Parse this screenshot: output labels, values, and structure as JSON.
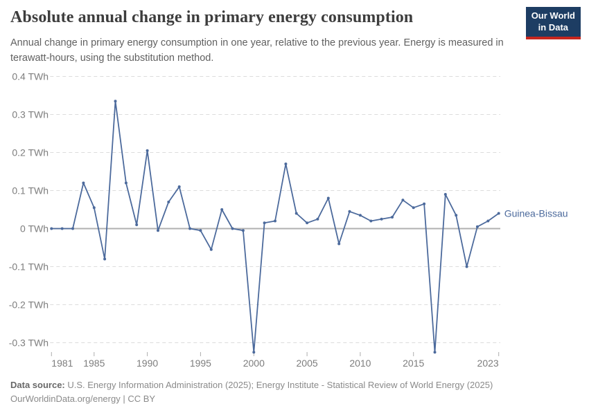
{
  "header": {
    "title": "Absolute annual change in primary energy consumption",
    "subtitle": "Annual change in primary energy consumption in one year, relative to the previous year. Energy is measured in terawatt-hours, using the substitution method.",
    "logo": {
      "line1": "Our World",
      "line2": "in Data"
    }
  },
  "chart_data": {
    "type": "line",
    "title": "Absolute annual change in primary energy consumption",
    "xlabel": "",
    "ylabel": "TWh",
    "xlim": [
      1981,
      2023
    ],
    "ylim": [
      -0.35,
      0.42
    ],
    "grid": "horizontal-dashed",
    "zero_line": true,
    "legend_position": "end-of-line",
    "x": [
      1981,
      1982,
      1983,
      1984,
      1985,
      1986,
      1987,
      1988,
      1989,
      1990,
      1991,
      1992,
      1993,
      1994,
      1995,
      1996,
      1997,
      1998,
      1999,
      2000,
      2001,
      2002,
      2003,
      2004,
      2005,
      2006,
      2007,
      2008,
      2009,
      2010,
      2011,
      2012,
      2013,
      2014,
      2015,
      2016,
      2017,
      2018,
      2019,
      2020,
      2021,
      2022,
      2023
    ],
    "series": [
      {
        "name": "Guinea-Bissau",
        "color": "#4c6a9c",
        "values": [
          0,
          0,
          0,
          0.12,
          0.055,
          -0.08,
          0.335,
          0.12,
          0.01,
          0.205,
          -0.005,
          0.07,
          0.11,
          0,
          -0.005,
          -0.055,
          0.05,
          0,
          -0.005,
          -0.325,
          0.015,
          0.02,
          0.17,
          0.04,
          0.015,
          0.025,
          0.08,
          -0.04,
          0.045,
          0.035,
          0.02,
          0.025,
          0.03,
          0.075,
          0.055,
          0.065,
          -0.325,
          0.09,
          0.035,
          -0.1,
          0.005,
          0.02,
          0.04
        ]
      }
    ],
    "x_ticks": [
      1981,
      1985,
      1990,
      1995,
      2000,
      2005,
      2010,
      2015,
      2023
    ],
    "y_ticks": [
      {
        "value": 0.4,
        "label": "0.4 TWh"
      },
      {
        "value": 0.3,
        "label": "0.3 TWh"
      },
      {
        "value": 0.2,
        "label": "0.2 TWh"
      },
      {
        "value": 0.1,
        "label": "0.1 TWh"
      },
      {
        "value": 0,
        "label": "0 TWh"
      },
      {
        "value": -0.1,
        "label": "-0.1 TWh"
      },
      {
        "value": -0.2,
        "label": "-0.2 TWh"
      },
      {
        "value": -0.3,
        "label": "-0.3 TWh"
      }
    ]
  },
  "footer": {
    "source_label": "Data source:",
    "source_text": " U.S. Energy Information Administration (2025); Energy Institute - Statistical Review of World Energy (2025)",
    "license_line": "OurWorldinData.org/energy | CC BY"
  },
  "colors": {
    "accent_line": "#4c6a9c",
    "series_label": "#4c6a9c",
    "grid": "#dcdcdc",
    "zero_line": "#b0b0b0",
    "tick_text": "#7d7d7d",
    "tick_mark": "#adadad",
    "title_text": "#3d3d3d",
    "subtitle_text": "#606060",
    "footer_text": "#8a8a8a",
    "footer_label": "#686868",
    "logo_bg": "#1d3d63",
    "logo_stripe": "#c6261e"
  }
}
